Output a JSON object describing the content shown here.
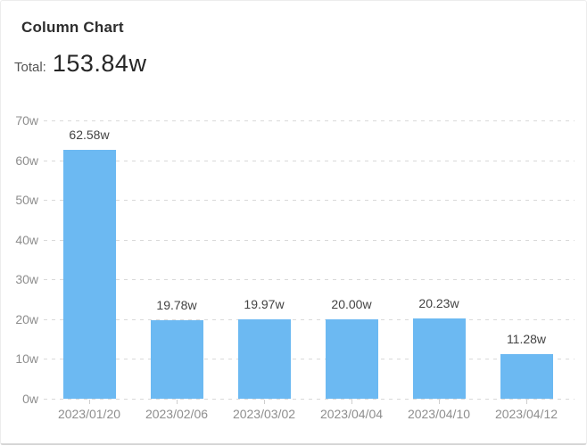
{
  "card": {
    "title": "Column Chart",
    "total_label": "Total:",
    "total_value": "153.84w"
  },
  "chart_data": {
    "type": "bar",
    "title": "Column Chart",
    "categories": [
      "2023/01/20",
      "2023/02/06",
      "2023/03/02",
      "2023/04/04",
      "2023/04/10",
      "2023/04/12"
    ],
    "values": [
      62.58,
      19.78,
      19.97,
      20.0,
      20.23,
      11.28
    ],
    "value_labels": [
      "62.58w",
      "19.78w",
      "19.97w",
      "20.00w",
      "20.23w",
      "11.28w"
    ],
    "total": 153.84,
    "xlabel": "",
    "ylabel": "",
    "ylim": [
      0,
      70
    ],
    "y_tick_step": 10,
    "y_tick_labels": [
      "0w",
      "10w",
      "20w",
      "30w",
      "40w",
      "50w",
      "60w",
      "70w"
    ],
    "grid": "horizontal-dashed",
    "legend_position": "none"
  },
  "colors": {
    "bar": "#6cb9f2",
    "gridline": "#d9d9d9",
    "axis_label": "#8e8e8e",
    "value_label": "#434343",
    "title": "#2d2d2d",
    "total_value": "#262626"
  }
}
